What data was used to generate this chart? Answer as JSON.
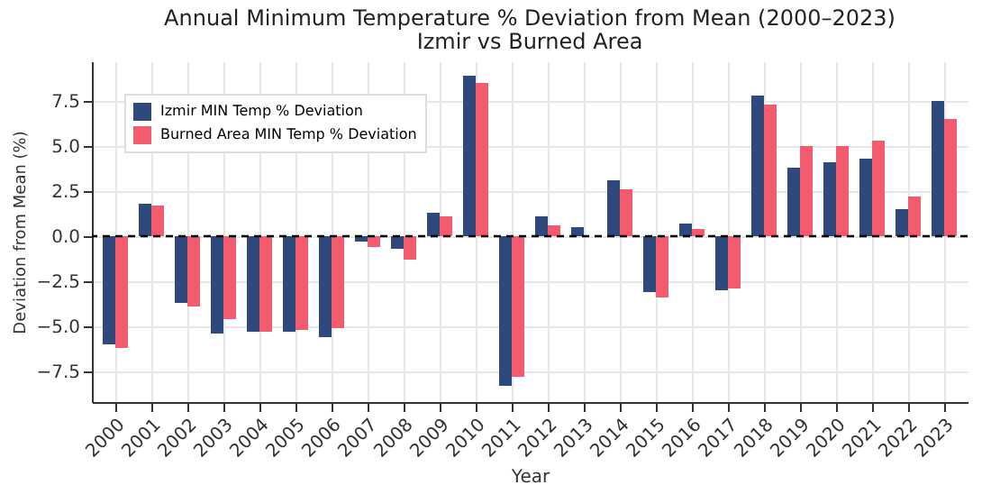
{
  "chart_data": {
    "type": "bar",
    "title": "Annual Minimum Temperature % Deviation from Mean (2000–2023)",
    "subtitle": "Izmir vs Burned Area",
    "xlabel": "Year",
    "ylabel": "Deviation from Mean (%)",
    "categories": [
      "2000",
      "2001",
      "2002",
      "2003",
      "2004",
      "2005",
      "2006",
      "2007",
      "2008",
      "2009",
      "2010",
      "2011",
      "2012",
      "2013",
      "2014",
      "2015",
      "2016",
      "2017",
      "2018",
      "2019",
      "2020",
      "2021",
      "2022",
      "2023"
    ],
    "series": [
      {
        "name": "Izmir MIN Temp % Deviation",
        "color": "#2e4a7d",
        "values": [
          -6.0,
          1.8,
          -3.7,
          -5.4,
          -5.3,
          -5.3,
          -5.6,
          -0.3,
          -0.7,
          1.3,
          8.9,
          -8.3,
          1.1,
          0.5,
          3.1,
          -3.1,
          0.7,
          -3.0,
          7.8,
          3.8,
          4.1,
          4.3,
          1.5,
          7.5
        ]
      },
      {
        "name": "Burned Area MIN Temp % Deviation",
        "color": "#f25c6e",
        "values": [
          -6.2,
          1.7,
          -3.9,
          -4.6,
          -5.3,
          -5.2,
          -5.1,
          -0.6,
          -1.3,
          1.1,
          8.5,
          -7.8,
          0.6,
          0.0,
          2.6,
          -3.4,
          0.4,
          -2.9,
          7.3,
          5.0,
          5.0,
          5.3,
          2.2,
          6.5
        ]
      }
    ],
    "ylim": [
      -9.2,
      9.7
    ],
    "yticks": [
      {
        "value": -7.5,
        "label": "−7.5"
      },
      {
        "value": -5,
        "label": "−5.0"
      },
      {
        "value": -2.5,
        "label": "−2.5"
      },
      {
        "value": 0,
        "label": "0.0"
      },
      {
        "value": 2.5,
        "label": "2.5"
      },
      {
        "value": 5,
        "label": "5.0"
      },
      {
        "value": 7.5,
        "label": "7.5"
      }
    ],
    "ref_lines": [
      {
        "axis": "y",
        "value": 0,
        "color": "#000000",
        "line_style": "dashed"
      }
    ],
    "grid": true,
    "legend": "top left"
  }
}
